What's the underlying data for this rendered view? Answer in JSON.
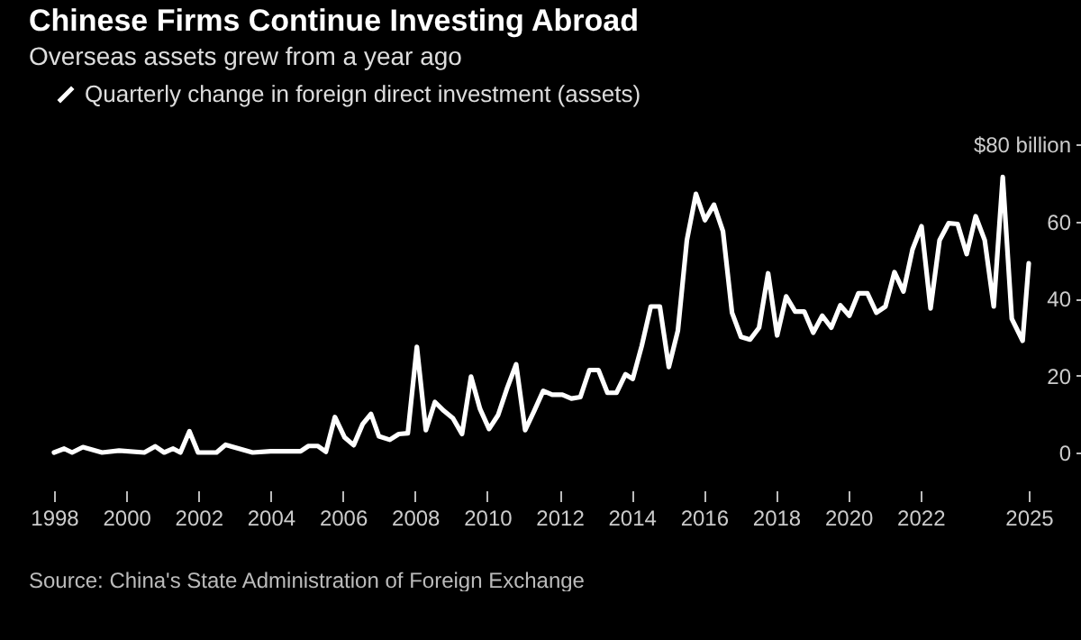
{
  "chart_data": {
    "type": "line",
    "title": "Chinese Firms Continue Investing Abroad",
    "subtitle": "Overseas assets grew from a year ago",
    "annotations": [
      "Source: China's State Administration of Foreign Exchange"
    ],
    "x": [
      1998.0,
      1998.28,
      1998.5,
      1998.8,
      1999.33,
      1999.8,
      2000.5,
      2000.8,
      2001.05,
      2001.3,
      2001.5,
      2001.75,
      2001.99,
      2002.5,
      2002.75,
      2003.5,
      2004.0,
      2004.83,
      2005.05,
      2005.3,
      2005.53,
      2005.78,
      2006.05,
      2006.3,
      2006.55,
      2006.78,
      2007.0,
      2007.3,
      2007.55,
      2007.8,
      2008.05,
      2008.3,
      2008.55,
      2008.8,
      2009.05,
      2009.3,
      2009.55,
      2009.8,
      2010.05,
      2010.3,
      2010.55,
      2010.8,
      2011.05,
      2011.3,
      2011.55,
      2011.8,
      2012.08,
      2012.33,
      2012.58,
      2012.83,
      2013.08,
      2013.33,
      2013.58,
      2013.83,
      2014.03,
      2014.28,
      2014.53,
      2014.78,
      2015.03,
      2015.28,
      2015.53,
      2015.78,
      2016.03,
      2016.28,
      2016.53,
      2016.78,
      2017.03,
      2017.28,
      2017.53,
      2017.78,
      2018.03,
      2018.28,
      2018.53,
      2018.78,
      2019.03,
      2019.28,
      2019.53,
      2019.78,
      2020.03,
      2020.28,
      2020.53,
      2020.78,
      2021.03,
      2021.28,
      2021.53,
      2021.78,
      2022.03,
      2022.28,
      2022.53,
      2022.78,
      2023.03,
      2023.28,
      2023.53,
      2023.78,
      2024.03,
      2024.28,
      2024.53,
      2024.83,
      2025
    ],
    "series": [
      {
        "name": "Quarterly change in foreign direct investment (assets)",
        "color": "#ffffff",
        "values": [
          0,
          1,
          0,
          1.4,
          0,
          0.5,
          0,
          1.6,
          0,
          1,
          0,
          5.5,
          0,
          0,
          2,
          0,
          0.3,
          0.3,
          1.7,
          1.7,
          0.2,
          9.2,
          3.9,
          1.9,
          7.4,
          10,
          4.2,
          3.3,
          4.8,
          5,
          27.4,
          5.8,
          13.1,
          10.8,
          8.9,
          4.8,
          19.7,
          11.3,
          6.1,
          9.7,
          16.7,
          22.9,
          5.8,
          10.8,
          16,
          15,
          15,
          14,
          14.4,
          21.4,
          21.4,
          15.5,
          15.5,
          20.3,
          19.1,
          27.7,
          37.9,
          37.9,
          22.2,
          31.6,
          55.1,
          67.1,
          60.3,
          64.3,
          57.4,
          36.3,
          30,
          29.3,
          32.4,
          46.5,
          30.4,
          40.5,
          36.6,
          36.6,
          31.1,
          35.5,
          32.4,
          38.2,
          35.5,
          41.3,
          41.3,
          36.3,
          37.9,
          46.8,
          41.8,
          52.7,
          58.7,
          37.4,
          55.1,
          59.5,
          59.3,
          51.5,
          61.3,
          55.1,
          37.9,
          71.5,
          34.7,
          29,
          49.1
        ]
      }
    ],
    "xlim": [
      1998,
      2025
    ],
    "xticks": [
      1998,
      2000,
      2002,
      2004,
      2006,
      2008,
      2010,
      2012,
      2014,
      2016,
      2018,
      2020,
      2022,
      2025
    ],
    "ylim": [
      0,
      80
    ],
    "yticks": [
      0,
      20,
      40,
      60,
      {
        "value": 80,
        "label": "$80 billion"
      }
    ],
    "grid": false,
    "legend": "top left",
    "line_style": "solid",
    "marker": "none"
  }
}
